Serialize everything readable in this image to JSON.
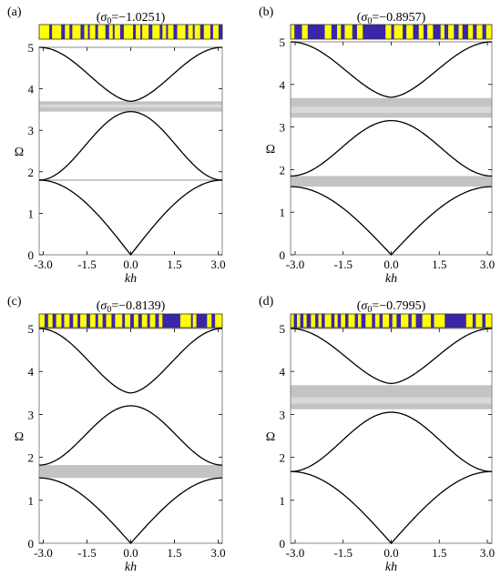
{
  "chart_data": [
    {
      "type": "line",
      "panel_label": "(a)",
      "title": "(σ₀=−1.0251)",
      "title_sym": "σ",
      "title_sub": "0",
      "title_val": "=−1.0251)",
      "xlabel": "kh",
      "ylabel": "Ω",
      "xlim": [
        -3.14159,
        3.14159
      ],
      "ylim": [
        0,
        5
      ],
      "xticks": [
        "-3.0",
        "-1.5",
        "0.0",
        "1.5",
        "3.0"
      ],
      "yticks": [
        "0",
        "1",
        "2",
        "3",
        "4",
        "5"
      ],
      "bands": [
        {
          "name": "band 1",
          "min": 0.0,
          "max": 1.8
        },
        {
          "name": "band 2",
          "min": 1.8,
          "max": 3.45
        },
        {
          "name": "band 3",
          "min": 3.7,
          "max": 5.0
        }
      ],
      "gaps": [
        {
          "lo": 1.78,
          "hi": 1.82,
          "shades": []
        },
        {
          "lo": 3.45,
          "hi": 3.7,
          "shades": [
            [
              3.55,
              3.62
            ]
          ]
        }
      ],
      "stripe": {
        "colors": [
          "#ffff00",
          "#3a26a8"
        ],
        "segments": [
          0.055,
          0.015,
          0.05,
          0.02,
          0.025,
          0.015,
          0.045,
          0.02,
          0.02,
          0.01,
          0.03,
          0.015,
          0.04,
          0.02,
          0.02,
          0.01,
          0.03,
          0.02,
          0.05,
          0.015,
          0.025,
          0.01,
          0.035,
          0.02,
          0.04,
          0.015,
          0.02,
          0.01,
          0.03,
          0.02,
          0.045,
          0.015,
          0.025,
          0.01,
          0.03,
          0.02,
          0.035,
          0.015,
          0.03,
          0.02
        ]
      }
    },
    {
      "type": "line",
      "panel_label": "(b)",
      "title": "(σ₀=−0.8957)",
      "title_sym": "σ",
      "title_sub": "0",
      "title_val": "=−0.8957)",
      "xlabel": "kh",
      "ylabel": "Ω",
      "xlim": [
        -3.14159,
        3.14159
      ],
      "ylim": [
        0,
        5
      ],
      "xticks": [
        "-3.0",
        "-1.5",
        "0.0",
        "1.5",
        "3.0"
      ],
      "yticks": [
        "0",
        "1",
        "2",
        "3",
        "4",
        "5"
      ],
      "bands": [
        {
          "name": "band 1",
          "min": 0.0,
          "max": 1.6
        },
        {
          "name": "band 2",
          "min": 1.85,
          "max": 3.15
        },
        {
          "name": "band 3",
          "min": 3.7,
          "max": 5.0
        }
      ],
      "gaps": [
        {
          "lo": 1.6,
          "hi": 1.85,
          "shades": []
        },
        {
          "lo": 3.22,
          "hi": 3.68,
          "shades": [
            [
              3.33,
              3.48
            ]
          ]
        }
      ],
      "stripe": {
        "colors": [
          "#ffff00",
          "#3a26a8"
        ],
        "segments": [
          0.02,
          0.04,
          0.03,
          0.09,
          0.035,
          0.03,
          0.02,
          0.02,
          0.04,
          0.025,
          0.03,
          0.12,
          0.03,
          0.015,
          0.045,
          0.02,
          0.035,
          0.03,
          0.025,
          0.02,
          0.03,
          0.04,
          0.02,
          0.02,
          0.03,
          0.025,
          0.02,
          0.03,
          0.025,
          0.02,
          0.03,
          0.02,
          0.03
        ]
      }
    },
    {
      "type": "line",
      "panel_label": "(c)",
      "title": "(σ₀=−0.8139)",
      "title_sym": "σ",
      "title_sub": "0",
      "title_val": "=−0.8139)",
      "xlabel": "kh",
      "ylabel": "Ω",
      "xlim": [
        -3.14159,
        3.14159
      ],
      "ylim": [
        0,
        5
      ],
      "xticks": [
        "-3.0",
        "-1.5",
        "0.0",
        "1.5",
        "3.0"
      ],
      "yticks": [
        "0",
        "1",
        "2",
        "3",
        "4",
        "5"
      ],
      "bands": [
        {
          "name": "band 1",
          "min": 0.0,
          "max": 1.52
        },
        {
          "name": "band 2",
          "min": 1.82,
          "max": 3.2
        },
        {
          "name": "band 3",
          "min": 3.5,
          "max": 5.0
        }
      ],
      "gaps": [
        {
          "lo": 1.52,
          "hi": 1.82,
          "shades": []
        }
      ],
      "stripe": {
        "colors": [
          "#ffff00",
          "#3a26a8"
        ],
        "segments": [
          0.03,
          0.02,
          0.025,
          0.02,
          0.03,
          0.015,
          0.03,
          0.02,
          0.025,
          0.015,
          0.035,
          0.02,
          0.03,
          0.015,
          0.025,
          0.02,
          0.03,
          0.02,
          0.04,
          0.015,
          0.03,
          0.02,
          0.025,
          0.02,
          0.03,
          0.015,
          0.03,
          0.02,
          0.02,
          0.1,
          0.06,
          0.01,
          0.02,
          0.06,
          0.025,
          0.02,
          0.04
        ]
      }
    },
    {
      "type": "line",
      "panel_label": "(d)",
      "title": "(σ₀=−0.7995)",
      "title_sym": "σ",
      "title_sub": "0",
      "title_val": "=−0.7995)",
      "xlabel": "kh",
      "ylabel": "Ω",
      "xlim": [
        -3.14159,
        3.14159
      ],
      "ylim": [
        0,
        5
      ],
      "xticks": [
        "-3.0",
        "-1.5",
        "0.0",
        "1.5",
        "3.0"
      ],
      "yticks": [
        "0",
        "1",
        "2",
        "3",
        "4",
        "5"
      ],
      "bands": [
        {
          "name": "band 1",
          "min": 0.0,
          "max": 1.67
        },
        {
          "name": "band 2",
          "min": 1.67,
          "max": 3.05
        },
        {
          "name": "band 3",
          "min": 3.72,
          "max": 5.0
        }
      ],
      "gaps": [
        {
          "lo": 3.12,
          "hi": 3.68,
          "shades": [
            [
              3.25,
              3.4
            ]
          ]
        }
      ],
      "stripe": {
        "colors": [
          "#ffff00",
          "#3a26a8"
        ],
        "segments": [
          0.015,
          0.015,
          0.015,
          0.015,
          0.015,
          0.02,
          0.02,
          0.015,
          0.015,
          0.015,
          0.03,
          0.015,
          0.015,
          0.015,
          0.02,
          0.015,
          0.03,
          0.015,
          0.015,
          0.02,
          0.03,
          0.015,
          0.02,
          0.015,
          0.03,
          0.015,
          0.02,
          0.02,
          0.035,
          0.015,
          0.02,
          0.03,
          0.04,
          0.015,
          0.05,
          0.1,
          0.03,
          0.015,
          0.03,
          0.015,
          0.03
        ]
      }
    }
  ]
}
